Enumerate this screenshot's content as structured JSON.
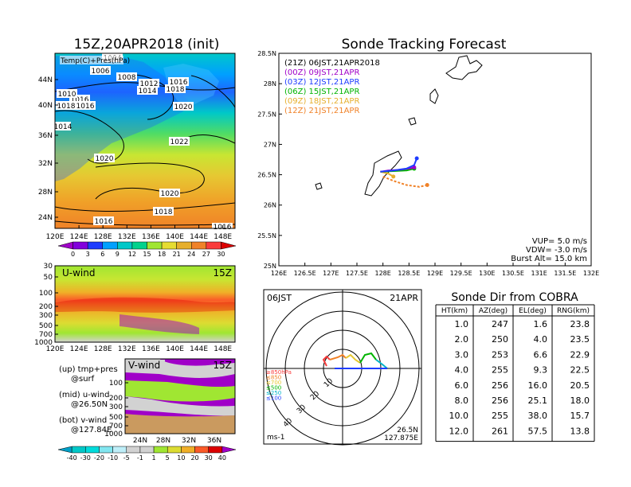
{
  "synoptic": {
    "title": "15Z,20APR2018 (init)",
    "overlay_label": "Temp(C)+Pres(hPa)",
    "isobar_labels": [
      "1004",
      "1006",
      "1008",
      "1012",
      "1014",
      "1016",
      "1018",
      "1016",
      "1020",
      "1022",
      "1010",
      "1016",
      "1018",
      "1014",
      "1020",
      "1020",
      "1018",
      "1016",
      "1016"
    ],
    "lat_labels": [
      "44N",
      "40N",
      "36N",
      "32N",
      "28N",
      "24N"
    ],
    "lon_labels": [
      "120E",
      "124E",
      "128E",
      "132E",
      "136E",
      "140E",
      "144E",
      "148E"
    ],
    "colorbar_labels": [
      "0",
      "3",
      "6",
      "9",
      "12",
      "15",
      "18",
      "21",
      "24",
      "27",
      "30"
    ],
    "colorbar_colors": [
      "#a000c8",
      "#8200dc",
      "#1e3cff",
      "#00a0ff",
      "#00c8c8",
      "#00d28c",
      "#a0e632",
      "#e6dc32",
      "#e6af2d",
      "#f08228",
      "#fa3c3c",
      "#dc0000"
    ]
  },
  "uwind": {
    "label": "U-wind",
    "time": "15Z",
    "p_labels": [
      "30",
      "50",
      "100",
      "200",
      "300",
      "500",
      "700",
      "1000"
    ],
    "lon_labels": [
      "120E",
      "124E",
      "128E",
      "132E",
      "136E",
      "140E",
      "144E",
      "148E"
    ]
  },
  "vwind": {
    "label": "V-wind",
    "time": "15Z",
    "p_labels": [
      "100",
      "200",
      "300",
      "500",
      "700",
      "1000"
    ],
    "lat_labels": [
      "24N",
      "28N",
      "32N",
      "36N"
    ]
  },
  "legend_text": {
    "line1": "(up) tmp+pres",
    "line2": "@surf",
    "line3": "(mid) u-wind",
    "line4": "@26.50N",
    "line5": "(bot) v-wind",
    "line6": "@127.84E"
  },
  "wind_colorbar": {
    "labels": [
      "-40",
      "-30",
      "-20",
      "-10",
      "-5",
      "-1",
      "1",
      "5",
      "10",
      "20",
      "30",
      "40"
    ],
    "colors": [
      "#00a0c8",
      "#00c8c8",
      "#00dcdc",
      "#82e6f0",
      "#beeef8",
      "#d2d2d2",
      "#d2d2d2",
      "#a0e632",
      "#dcdc32",
      "#f0af28",
      "#fa5a28",
      "#dc0000",
      "#a000c8"
    ]
  },
  "tracking": {
    "title": "Sonde Tracking Forecast",
    "launch_header": "(21Z)  06JST,21APR2018",
    "legend": [
      {
        "label": "(00Z)  09JST,21APR",
        "color": "#a000c8"
      },
      {
        "label": "(03Z)  12JST,21APR",
        "color": "#1e3cff"
      },
      {
        "label": "(06Z)  15JST,21APR",
        "color": "#00b400"
      },
      {
        "label": "(09Z)  18JST,21APR",
        "color": "#e6af2d"
      },
      {
        "label": "(12Z)  21JST,21APR",
        "color": "#f08228"
      }
    ],
    "params": [
      "VUP= 5.0 m/s",
      "VDW= -3.0 m/s",
      "Burst Alt= 15.0 km"
    ],
    "lat_labels": [
      "28.5N",
      "28N",
      "27.5N",
      "27N",
      "26.5N",
      "26N",
      "25.5N",
      "25N"
    ],
    "lon_labels": [
      "126E",
      "126.5E",
      "127E",
      "127.5E",
      "128E",
      "128.5E",
      "129E",
      "129.5E",
      "130E",
      "130.5E",
      "131E",
      "131.5E",
      "132E"
    ]
  },
  "polar": {
    "time_label": "06JST",
    "date_label": "21APR",
    "ring_labels": [
      "10",
      "20",
      "30",
      "40"
    ],
    "unit": "ms-1",
    "lat": "26.5N",
    "lon": "127.875E",
    "level_legend": [
      {
        "label": "≥850hPa",
        "color": "#fa3c3c"
      },
      {
        "label": "≤850",
        "color": "#f08228"
      },
      {
        "label": "≤700",
        "color": "#e6c832"
      },
      {
        "label": "≤500",
        "color": "#00b400"
      },
      {
        "label": "≤250",
        "color": "#00b4c8"
      },
      {
        "label": "≤100",
        "color": "#1e3cff"
      }
    ]
  },
  "sonde_table": {
    "title": "Sonde Dir from COBRA",
    "headers": [
      "HT(km)",
      "AZ(deg)",
      "EL(deg)",
      "RNG(km)"
    ],
    "rows": [
      [
        "1.0",
        "247",
        "1.6",
        "23.8"
      ],
      [
        "2.0",
        "250",
        "4.0",
        "23.5"
      ],
      [
        "3.0",
        "253",
        "6.6",
        "22.9"
      ],
      [
        "4.0",
        "255",
        "9.3",
        "22.5"
      ],
      [
        "6.0",
        "256",
        "16.0",
        "20.5"
      ],
      [
        "8.0",
        "256",
        "25.1",
        "18.0"
      ],
      [
        "10.0",
        "255",
        "38.0",
        "15.7"
      ],
      [
        "12.0",
        "261",
        "57.5",
        "13.8"
      ]
    ]
  },
  "chart_data": [
    {
      "type": "heatmap",
      "title": "15Z,20APR2018 (init)",
      "description_field": "Temp(C)+Pres(hPa)",
      "xlim": [
        120,
        150
      ],
      "ylim": [
        22,
        48
      ],
      "colorbar": [
        0,
        3,
        6,
        9,
        12,
        15,
        18,
        21,
        24,
        27,
        30
      ]
    },
    {
      "type": "heatmap",
      "series": [
        {
          "name": "U-wind",
          "values": []
        }
      ],
      "xlim": [
        120,
        150
      ],
      "yticks": [
        30,
        50,
        100,
        200,
        300,
        500,
        700,
        1000
      ]
    },
    {
      "type": "heatmap",
      "series": [
        {
          "name": "V-wind",
          "values": []
        }
      ],
      "xlim": [
        22,
        38
      ],
      "yticks": [
        100,
        200,
        300,
        500,
        700,
        1000
      ]
    },
    {
      "type": "line",
      "title": "Sonde Tracking Forecast",
      "xlim": [
        126,
        132
      ],
      "ylim": [
        25,
        28.5
      ],
      "series": [
        {
          "name": "(00Z)  09JST,21APR",
          "x": [
            127.95,
            128.1,
            128.3,
            128.5,
            128.6
          ],
          "y": [
            26.55,
            26.57,
            26.58,
            26.6,
            26.62
          ]
        },
        {
          "name": "(03Z)  12JST,21APR",
          "x": [
            127.95,
            128.2,
            128.45,
            128.6,
            128.65
          ],
          "y": [
            26.55,
            26.57,
            26.6,
            26.66,
            26.77
          ]
        },
        {
          "name": "(06Z)  15JST,21APR",
          "x": [
            127.95,
            128.2,
            128.45,
            128.6
          ],
          "y": [
            26.55,
            26.56,
            26.57,
            26.6
          ]
        },
        {
          "name": "(09Z)  18JST,21APR",
          "x": [
            127.95,
            128.1,
            128.2
          ],
          "y": [
            26.55,
            26.52,
            26.47
          ]
        },
        {
          "name": "(12Z)  21JST,21APR",
          "x": [
            128.0,
            128.2,
            128.45,
            128.7,
            128.85
          ],
          "y": [
            26.47,
            26.4,
            26.33,
            26.3,
            26.33
          ]
        }
      ]
    },
    {
      "type": "table",
      "title": "Sonde Dir from COBRA",
      "columns": [
        "HT(km)",
        "AZ(deg)",
        "EL(deg)",
        "RNG(km)"
      ],
      "rows": [
        [
          1.0,
          247,
          1.6,
          23.8
        ],
        [
          2.0,
          250,
          4.0,
          23.5
        ],
        [
          3.0,
          253,
          6.6,
          22.9
        ],
        [
          4.0,
          255,
          9.3,
          22.5
        ],
        [
          6.0,
          256,
          16.0,
          20.5
        ],
        [
          8.0,
          256,
          25.1,
          18.0
        ],
        [
          10.0,
          255,
          38.0,
          15.7
        ],
        [
          12.0,
          261,
          57.5,
          13.8
        ]
      ]
    }
  ]
}
